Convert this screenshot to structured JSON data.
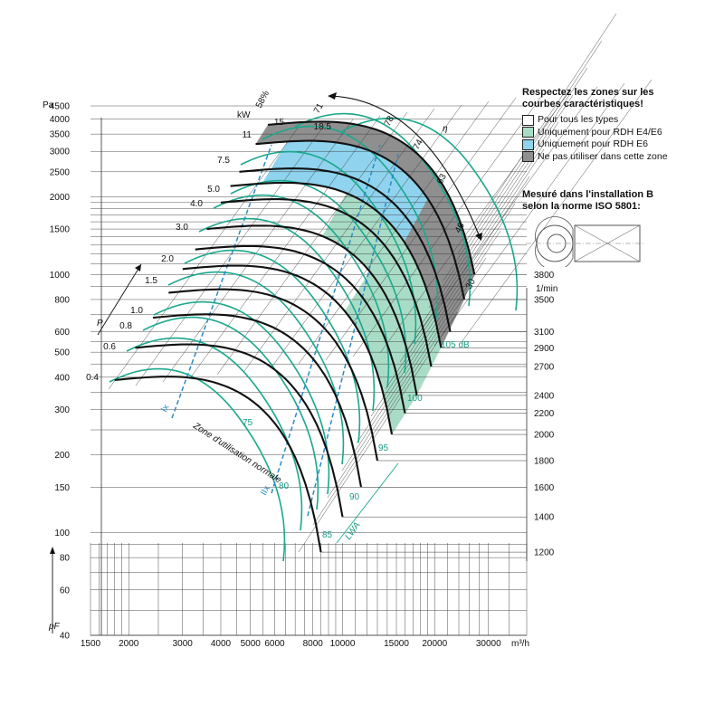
{
  "chart_data": {
    "type": "line",
    "x_scale": "log",
    "y_scale": "log",
    "xlim": [
      1500,
      40000
    ],
    "ylim": [
      40,
      4500
    ],
    "x_unit": "m³/h",
    "y_unit": "Pa",
    "y_axis_symbol": "pF",
    "x_ticks": [
      {
        "label": "1500",
        "value": 1500
      },
      {
        "label": "2000",
        "value": 2000
      },
      {
        "label": "3000",
        "value": 3000
      },
      {
        "label": "4000",
        "value": 4000
      },
      {
        "label": "5000",
        "value": 5000
      },
      {
        "label": "6000",
        "value": 6000
      },
      {
        "label": "8000",
        "value": 8000
      },
      {
        "label": "10000",
        "value": 10000
      },
      {
        "label": "15000",
        "value": 15000
      },
      {
        "label": "20000",
        "value": 20000
      },
      {
        "label": "30000",
        "value": 30000
      }
    ],
    "y_ticks": [
      {
        "label": "40",
        "value": 40
      },
      {
        "label": "60",
        "value": 60
      },
      {
        "label": "80",
        "value": 80
      },
      {
        "label": "100",
        "value": 100
      },
      {
        "label": "150",
        "value": 150
      },
      {
        "label": "200",
        "value": 200
      },
      {
        "label": "300",
        "value": 300
      },
      {
        "label": "400",
        "value": 400
      },
      {
        "label": "500",
        "value": 500
      },
      {
        "label": "600",
        "value": 600
      },
      {
        "label": "800",
        "value": 800
      },
      {
        "label": "1000",
        "value": 1000
      },
      {
        "label": "1500",
        "value": 1500
      },
      {
        "label": "2000",
        "value": 2000
      },
      {
        "label": "2500",
        "value": 2500
      },
      {
        "label": "3000",
        "value": 3000
      },
      {
        "label": "3500",
        "value": 3500
      },
      {
        "label": "4000",
        "value": 4000
      },
      {
        "label": "4500",
        "value": 4500
      }
    ],
    "speed_axis": {
      "unit": "1/min",
      "labels": [
        {
          "label": "3800",
          "pressure": 1000
        },
        {
          "label": "3500",
          "pressure": 800
        },
        {
          "label": "3100",
          "pressure": 600
        },
        {
          "label": "2900",
          "pressure": 520
        },
        {
          "label": "2700",
          "pressure": 440
        },
        {
          "label": "2400",
          "pressure": 340
        },
        {
          "label": "2200",
          "pressure": 290
        },
        {
          "label": "2000",
          "pressure": 240
        },
        {
          "label": "1800",
          "pressure": 190
        },
        {
          "label": "1600",
          "pressure": 150
        },
        {
          "label": "1400",
          "pressure": 115
        },
        {
          "label": "1200",
          "pressure": 84
        }
      ]
    },
    "speed_curves": [
      {
        "n": "1200",
        "shutoff_flow": 1800,
        "shutoff_pressure": 390,
        "end_flow": 8500,
        "end_pressure": 84
      },
      {
        "n": "1400",
        "shutoff_flow": 2100,
        "shutoff_pressure": 520,
        "end_flow": 10000,
        "end_pressure": 115
      },
      {
        "n": "1600",
        "shutoff_flow": 2400,
        "shutoff_pressure": 680,
        "end_flow": 11500,
        "end_pressure": 150
      },
      {
        "n": "1800",
        "shutoff_flow": 2700,
        "shutoff_pressure": 850,
        "end_flow": 13000,
        "end_pressure": 190
      },
      {
        "n": "2000",
        "shutoff_flow": 3000,
        "shutoff_pressure": 1050,
        "end_flow": 14500,
        "end_pressure": 240
      },
      {
        "n": "2200",
        "shutoff_flow": 3300,
        "shutoff_pressure": 1250,
        "end_flow": 16000,
        "end_pressure": 290
      },
      {
        "n": "2400",
        "shutoff_flow": 3600,
        "shutoff_pressure": 1500,
        "end_flow": 17500,
        "end_pressure": 340
      },
      {
        "n": "2700",
        "shutoff_flow": 4000,
        "shutoff_pressure": 1900,
        "end_flow": 19500,
        "end_pressure": 440
      },
      {
        "n": "2900",
        "shutoff_flow": 4300,
        "shutoff_pressure": 2200,
        "end_flow": 21000,
        "end_pressure": 520
      },
      {
        "n": "3100",
        "shutoff_flow": 4600,
        "shutoff_pressure": 2500,
        "end_flow": 22500,
        "end_pressure": 600
      },
      {
        "n": "3500",
        "shutoff_flow": 5200,
        "shutoff_pressure": 3200,
        "end_flow": 25000,
        "end_pressure": 800
      },
      {
        "n": "3800",
        "shutoff_flow": 5700,
        "shutoff_pressure": 3800,
        "end_flow": 27000,
        "end_pressure": 1000
      }
    ],
    "power_labels": [
      "0.4",
      "0.6",
      "0.8",
      "1.0",
      "1.5",
      "2.0",
      "3.0",
      "4.0",
      "5.0",
      "7.5",
      "11",
      "15",
      "18.5"
    ],
    "power_unit": "kW",
    "power_symbol": "P",
    "efficiency_labels": [
      "30",
      "46",
      "63",
      "74",
      "78",
      "71",
      "58%"
    ],
    "efficiency_symbol": "η",
    "sound_labels": [
      "75",
      "80",
      "85",
      "90",
      "95",
      "100",
      "105 dB"
    ],
    "sound_symbol": "LWA",
    "normal_zone_label": "Zone d'utilisation normale",
    "normal_zone_marks": [
      "Ix",
      "IIx"
    ],
    "zones": [
      {
        "name": "Pour tous les types",
        "color": "#ffffff"
      },
      {
        "name": "Uniquement pour RDH E4/E6",
        "color": "#a9dcc7"
      },
      {
        "name": "Uniquement pour RDH E6",
        "color": "#8fd3ee"
      },
      {
        "name": "Ne pas utiliser dans cette zone",
        "color": "#8f8f8f"
      }
    ],
    "grid": true
  },
  "legend": {
    "title_line1": "Respectez les zones sur les",
    "title_line2": "courbes caractéristiques!"
  },
  "installation": {
    "title_line1": "Mesuré dans l'installation B",
    "title_line2": "selon la norme ISO 5801:"
  },
  "colors": {
    "curve": "#111111",
    "power": "#1aa88c",
    "efficiency_dash": "#2a8ac4",
    "grid": "#333333"
  }
}
